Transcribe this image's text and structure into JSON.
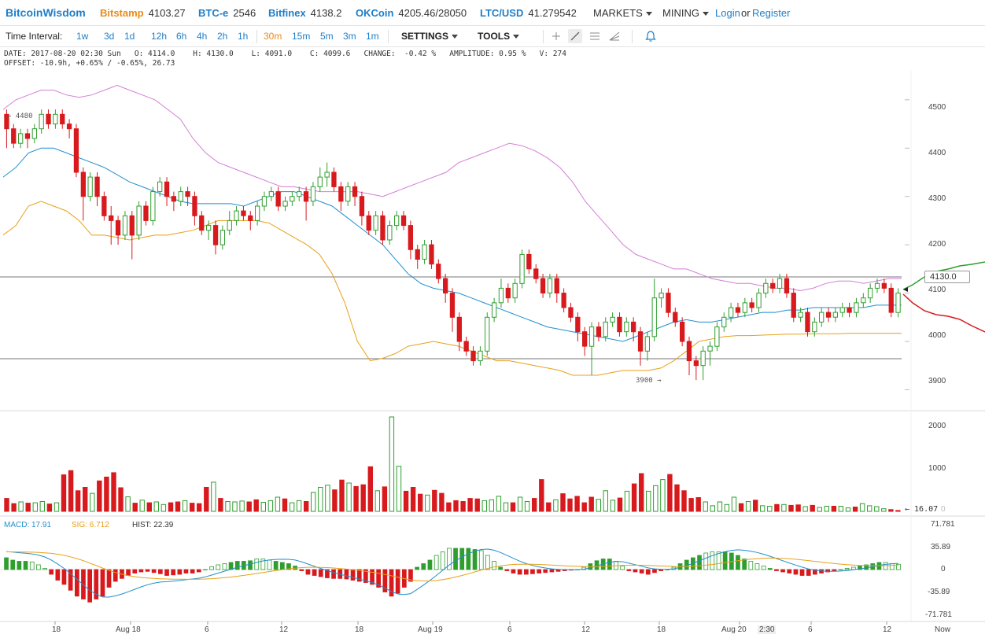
{
  "header": {
    "logo": "BitcoinWisdom",
    "exchanges": [
      {
        "name": "Bitstamp",
        "price": "4103.27",
        "color": "#e88b1a"
      },
      {
        "name": "BTC-e",
        "price": "2546",
        "color": "#1e7ec8"
      },
      {
        "name": "Bitfinex",
        "price": "4138.2",
        "color": "#1e7ec8"
      },
      {
        "name": "OKCoin",
        "price": "4205.46/28050",
        "color": "#1e7ec8"
      },
      {
        "name": "LTC/USD",
        "price": "41.279542",
        "color": "#1e7ec8"
      }
    ],
    "markets_label": "MARKETS",
    "mining_label": "MINING",
    "login_label": "Login",
    "or_label": "or",
    "register_label": "Register"
  },
  "toolbar": {
    "time_interval_label": "Time Interval:",
    "intervals": [
      "1w",
      "3d",
      "1d",
      "12h",
      "6h",
      "4h",
      "2h",
      "1h",
      "30m",
      "15m",
      "5m",
      "3m",
      "1m"
    ],
    "active_interval": "30m",
    "settings_label": "SETTINGS",
    "tools_label": "TOOLS"
  },
  "info": {
    "line1": "DATE: 2017-08-20 02:30 Sun   O: 4114.0    H: 4130.0    L: 4091.0    C: 4099.6   CHANGE:  -0.42 %   AMPLITUDE: 0.95 %   V: 274",
    "line2": "OFFSET: -10.9h, +0.65% / -0.65%, 26.73"
  },
  "price_axis": {
    "labels": [
      "4500",
      "4400",
      "4300",
      "4200",
      "4100",
      "4000",
      "3900"
    ],
    "current_price_tag": "4130.0",
    "high_marker": "← 4480",
    "low_marker": "3900 →"
  },
  "volume_axis": {
    "labels": [
      "2000",
      "1000",
      "0"
    ],
    "current_volume": "← 16.07"
  },
  "macd": {
    "macd_label": "MACD: 17.91",
    "sig_label": "SIG: 6.712",
    "hist_label": "HIST: 22.39",
    "axis_labels": [
      "71.781",
      "35.89",
      "0",
      "-35.89",
      "-71.781"
    ]
  },
  "time_axis": {
    "labels": [
      "18",
      "Aug 18",
      "6",
      "12",
      "18",
      "Aug 19",
      "6",
      "12",
      "18",
      "Aug 20",
      "2:30",
      "6",
      "12",
      "Now"
    ]
  },
  "colors": {
    "up": "#2f9e2f",
    "down": "#d8191d",
    "bb_upper": "#d47fd4",
    "bb_mid": "#1f8fd0",
    "bb_lower": "#e8a018",
    "link": "#1e7ec8",
    "active": "#e88b1a"
  },
  "chart_data": {
    "type": "candlestick",
    "price_ylim": [
      3860,
      4560
    ],
    "volume_ylim": [
      0,
      2200
    ],
    "macd_ylim": [
      -80,
      80
    ],
    "candles": [
      [
        4470,
        4440,
        4480,
        4400
      ],
      [
        4440,
        4410,
        4450,
        4400
      ],
      [
        4410,
        4430,
        4440,
        4400
      ],
      [
        4430,
        4420,
        4440,
        4400
      ],
      [
        4420,
        4440,
        4450,
        4410
      ],
      [
        4440,
        4470,
        4480,
        4430
      ],
      [
        4470,
        4450,
        4480,
        4440
      ],
      [
        4450,
        4470,
        4480,
        4440
      ],
      [
        4470,
        4450,
        4480,
        4440
      ],
      [
        4450,
        4440,
        4460,
        4420
      ],
      [
        4440,
        4350,
        4450,
        4340
      ],
      [
        4350,
        4300,
        4360,
        4250
      ],
      [
        4300,
        4340,
        4350,
        4290
      ],
      [
        4340,
        4300,
        4350,
        4280
      ],
      [
        4300,
        4260,
        4310,
        4250
      ],
      [
        4260,
        4250,
        4280,
        4200
      ],
      [
        4250,
        4220,
        4260,
        4200
      ],
      [
        4220,
        4260,
        4270,
        4210
      ],
      [
        4260,
        4220,
        4270,
        4170
      ],
      [
        4220,
        4280,
        4290,
        4210
      ],
      [
        4280,
        4250,
        4290,
        4240
      ],
      [
        4250,
        4310,
        4320,
        4240
      ],
      [
        4310,
        4330,
        4340,
        4300
      ],
      [
        4330,
        4300,
        4340,
        4280
      ],
      [
        4300,
        4290,
        4310,
        4270
      ],
      [
        4290,
        4310,
        4320,
        4280
      ],
      [
        4310,
        4300,
        4320,
        4280
      ],
      [
        4300,
        4260,
        4310,
        4240
      ],
      [
        4260,
        4230,
        4270,
        4220
      ],
      [
        4230,
        4240,
        4250,
        4210
      ],
      [
        4240,
        4200,
        4250,
        4180
      ],
      [
        4200,
        4230,
        4240,
        4190
      ],
      [
        4230,
        4250,
        4270,
        4220
      ],
      [
        4250,
        4270,
        4280,
        4240
      ],
      [
        4270,
        4260,
        4280,
        4250
      ],
      [
        4260,
        4250,
        4270,
        4230
      ],
      [
        4250,
        4280,
        4290,
        4240
      ],
      [
        4280,
        4300,
        4310,
        4270
      ],
      [
        4300,
        4310,
        4320,
        4290
      ],
      [
        4310,
        4280,
        4320,
        4270
      ],
      [
        4280,
        4290,
        4300,
        4270
      ],
      [
        4290,
        4300,
        4310,
        4280
      ],
      [
        4300,
        4310,
        4320,
        4290
      ],
      [
        4310,
        4290,
        4320,
        4250
      ],
      [
        4290,
        4320,
        4330,
        4280
      ],
      [
        4320,
        4340,
        4360,
        4310
      ],
      [
        4340,
        4350,
        4370,
        4320
      ],
      [
        4350,
        4320,
        4360,
        4310
      ],
      [
        4320,
        4290,
        4330,
        4270
      ],
      [
        4290,
        4320,
        4330,
        4280
      ],
      [
        4320,
        4300,
        4330,
        4280
      ],
      [
        4300,
        4260,
        4310,
        4240
      ],
      [
        4260,
        4230,
        4270,
        4220
      ],
      [
        4230,
        4260,
        4270,
        4220
      ],
      [
        4260,
        4210,
        4270,
        4200
      ],
      [
        4210,
        4240,
        4250,
        4200
      ],
      [
        4240,
        4260,
        4270,
        4230
      ],
      [
        4260,
        4240,
        4270,
        4230
      ],
      [
        4240,
        4190,
        4250,
        4170
      ],
      [
        4190,
        4170,
        4200,
        4150
      ],
      [
        4170,
        4200,
        4210,
        4160
      ],
      [
        4200,
        4160,
        4210,
        4150
      ],
      [
        4160,
        4130,
        4170,
        4120
      ],
      [
        4130,
        4100,
        4140,
        4080
      ],
      [
        4100,
        4050,
        4110,
        4020
      ],
      [
        4050,
        4000,
        4060,
        3980
      ],
      [
        4000,
        3980,
        4010,
        3970
      ],
      [
        3980,
        3960,
        3990,
        3950
      ],
      [
        3960,
        3980,
        3990,
        3950
      ],
      [
        3980,
        4050,
        4060,
        3970
      ],
      [
        4050,
        4080,
        4090,
        4040
      ],
      [
        4080,
        4110,
        4130,
        4070
      ],
      [
        4110,
        4090,
        4120,
        4080
      ],
      [
        4090,
        4120,
        4130,
        4080
      ],
      [
        4120,
        4180,
        4190,
        4110
      ],
      [
        4180,
        4150,
        4190,
        4140
      ],
      [
        4150,
        4130,
        4160,
        4120
      ],
      [
        4130,
        4100,
        4140,
        4090
      ],
      [
        4100,
        4130,
        4140,
        4090
      ],
      [
        4130,
        4100,
        4140,
        4080
      ],
      [
        4100,
        4070,
        4110,
        4060
      ],
      [
        4070,
        4050,
        4080,
        4040
      ],
      [
        4050,
        4020,
        4060,
        4000
      ],
      [
        4020,
        3990,
        4030,
        3970
      ],
      [
        3990,
        4030,
        4040,
        3930
      ],
      [
        4030,
        4010,
        4040,
        4000
      ],
      [
        4010,
        4040,
        4050,
        4000
      ],
      [
        4040,
        4050,
        4060,
        4030
      ],
      [
        4050,
        4020,
        4060,
        4010
      ],
      [
        4020,
        4040,
        4050,
        4010
      ],
      [
        4040,
        4020,
        4050,
        4000
      ],
      [
        4020,
        3980,
        4030,
        3950
      ],
      [
        3980,
        4010,
        4020,
        3960
      ],
      [
        4010,
        4090,
        4130,
        4000
      ],
      [
        4090,
        4100,
        4110,
        4070
      ],
      [
        4100,
        4060,
        4110,
        4050
      ],
      [
        4060,
        4040,
        4070,
        4030
      ],
      [
        4040,
        4000,
        4050,
        3990
      ],
      [
        4000,
        3960,
        4010,
        3930
      ],
      [
        3960,
        3950,
        3970,
        3920
      ],
      [
        3950,
        3980,
        3990,
        3920
      ],
      [
        3980,
        3990,
        4000,
        3950
      ],
      [
        3990,
        4030,
        4040,
        3980
      ],
      [
        4030,
        4050,
        4060,
        4020
      ],
      [
        4050,
        4070,
        4080,
        4040
      ],
      [
        4070,
        4060,
        4080,
        4050
      ],
      [
        4060,
        4080,
        4090,
        4050
      ],
      [
        4080,
        4070,
        4090,
        4060
      ],
      [
        4070,
        4100,
        4110,
        4060
      ],
      [
        4100,
        4120,
        4130,
        4090
      ],
      [
        4120,
        4110,
        4130,
        4100
      ],
      [
        4110,
        4130,
        4140,
        4100
      ],
      [
        4130,
        4100,
        4140,
        4090
      ],
      [
        4100,
        4050,
        4110,
        4040
      ],
      [
        4050,
        4060,
        4070,
        4040
      ],
      [
        4060,
        4020,
        4070,
        4010
      ],
      [
        4020,
        4040,
        4050,
        4010
      ],
      [
        4040,
        4060,
        4070,
        4030
      ],
      [
        4060,
        4050,
        4070,
        4040
      ],
      [
        4050,
        4060,
        4070,
        4040
      ],
      [
        4060,
        4070,
        4080,
        4050
      ],
      [
        4070,
        4060,
        4080,
        4050
      ],
      [
        4060,
        4080,
        4090,
        4050
      ],
      [
        4080,
        4090,
        4100,
        4070
      ],
      [
        4090,
        4110,
        4120,
        4080
      ],
      [
        4110,
        4120,
        4130,
        4100
      ],
      [
        4120,
        4110,
        4130,
        4100
      ],
      [
        4110,
        4060,
        4120,
        4050
      ],
      [
        4060,
        4100,
        4110,
        4050
      ]
    ],
    "volumes": [
      300,
      180,
      220,
      190,
      200,
      230,
      170,
      200,
      850,
      950,
      480,
      560,
      420,
      710,
      800,
      900,
      550,
      340,
      190,
      260,
      200,
      220,
      160,
      200,
      220,
      250,
      190,
      180,
      560,
      680,
      300,
      230,
      220,
      240,
      220,
      270,
      210,
      250,
      330,
      290,
      200,
      250,
      230,
      440,
      560,
      610,
      500,
      730,
      660,
      580,
      620,
      1040,
      480,
      570,
      2200,
      1050,
      470,
      560,
      400,
      380,
      490,
      420,
      200,
      250,
      230,
      300,
      290,
      250,
      270,
      350,
      200,
      200,
      330,
      230,
      300,
      740,
      200,
      270,
      410,
      290,
      350,
      200,
      330,
      280,
      480,
      260,
      310,
      470,
      640,
      880,
      470,
      600,
      740,
      860,
      620,
      480,
      300,
      320,
      220,
      130,
      220,
      160,
      330,
      180,
      230,
      260,
      130,
      120,
      160,
      160,
      140,
      150,
      110,
      140,
      90,
      120,
      120,
      120,
      80,
      100,
      180,
      130,
      110,
      60,
      40,
      20
    ],
    "bb_upper": [
      4480,
      4500,
      4510,
      4520,
      4520,
      4510,
      4505,
      4510,
      4520,
      4530,
      4520,
      4510,
      4500,
      4480,
      4460,
      4420,
      4390,
      4370,
      4360,
      4350,
      4340,
      4330,
      4320,
      4320,
      4315,
      4310,
      4310,
      4310,
      4310,
      4305,
      4300,
      4310,
      4320,
      4330,
      4340,
      4350,
      4370,
      4380,
      4390,
      4400,
      4410,
      4405,
      4395,
      4380,
      4360,
      4330,
      4290,
      4260,
      4230,
      4200,
      4180,
      4170,
      4160,
      4150,
      4150,
      4140,
      4130,
      4125,
      4120,
      4120,
      4115,
      4110,
      4110,
      4105,
      4110,
      4120,
      4125,
      4125,
      4120,
      4125,
      4130,
      4130
    ],
    "bb_mid": [
      4340,
      4360,
      4390,
      4400,
      4400,
      4390,
      4380,
      4370,
      4360,
      4345,
      4330,
      4320,
      4310,
      4300,
      4290,
      4285,
      4285,
      4285,
      4285,
      4280,
      4290,
      4300,
      4310,
      4310,
      4300,
      4290,
      4280,
      4260,
      4240,
      4220,
      4200,
      4170,
      4140,
      4120,
      4110,
      4105,
      4100,
      4090,
      4080,
      4070,
      4060,
      4050,
      4040,
      4030,
      4025,
      4020,
      4015,
      4010,
      4005,
      4000,
      4010,
      4020,
      4030,
      4040,
      4045,
      4040,
      4040,
      4045,
      4050,
      4055,
      4060,
      4060,
      4065,
      4065,
      4070,
      4070,
      4070,
      4070,
      4070,
      4075,
      4075,
      4075
    ],
    "bb_lower": [
      4220,
      4240,
      4280,
      4290,
      4280,
      4270,
      4250,
      4220,
      4220,
      4215,
      4210,
      4215,
      4220,
      4220,
      4225,
      4230,
      4240,
      4250,
      4250,
      4250,
      4250,
      4245,
      4230,
      4215,
      4200,
      4180,
      4140,
      4080,
      4000,
      3960,
      3965,
      3975,
      3990,
      3995,
      4000,
      3995,
      3990,
      3980,
      3970,
      3960,
      3960,
      3955,
      3950,
      3945,
      3940,
      3930,
      3930,
      3930,
      3935,
      3940,
      3940,
      3940,
      3945,
      3960,
      3980,
      4000,
      4005,
      4010,
      4012,
      4012,
      4013,
      4014,
      4015,
      4015,
      4016,
      4016,
      4016,
      4017,
      4017,
      4017,
      4017,
      4017
    ],
    "macd_hist": [
      20,
      16,
      14,
      14,
      13,
      8,
      2,
      -8,
      -18,
      -25,
      -35,
      -45,
      -50,
      -55,
      -50,
      -45,
      -30,
      -20,
      -15,
      -10,
      -6,
      -4,
      -3,
      -5,
      -7,
      -10,
      -9,
      -8,
      -6,
      -6,
      -4,
      0,
      5,
      8,
      10,
      12,
      14,
      14,
      15,
      18,
      18,
      16,
      14,
      12,
      10,
      6,
      -2,
      -8,
      -10,
      -12,
      -14,
      -15,
      -15,
      -16,
      -18,
      -20,
      -22,
      -25,
      -30,
      -38,
      -45,
      -40,
      -30,
      -20,
      4,
      10,
      16,
      24,
      30,
      36,
      36,
      36,
      36,
      34,
      32,
      24,
      14,
      4,
      -2,
      -6,
      -8,
      -8,
      -7,
      -6,
      -5,
      -4,
      -3,
      -2,
      -1,
      0,
      4,
      10,
      15,
      18,
      18,
      14,
      6,
      -2,
      -4,
      -6,
      -8,
      -5,
      -2,
      0,
      4,
      10,
      16,
      20,
      24,
      28,
      30,
      30,
      30,
      28,
      24,
      18,
      14,
      10,
      6,
      2,
      -2,
      -4,
      -6,
      -8,
      -10,
      -10,
      -8,
      -6,
      -4,
      -2,
      0,
      2,
      4,
      6,
      8,
      10,
      12,
      12,
      10,
      9
    ]
  }
}
